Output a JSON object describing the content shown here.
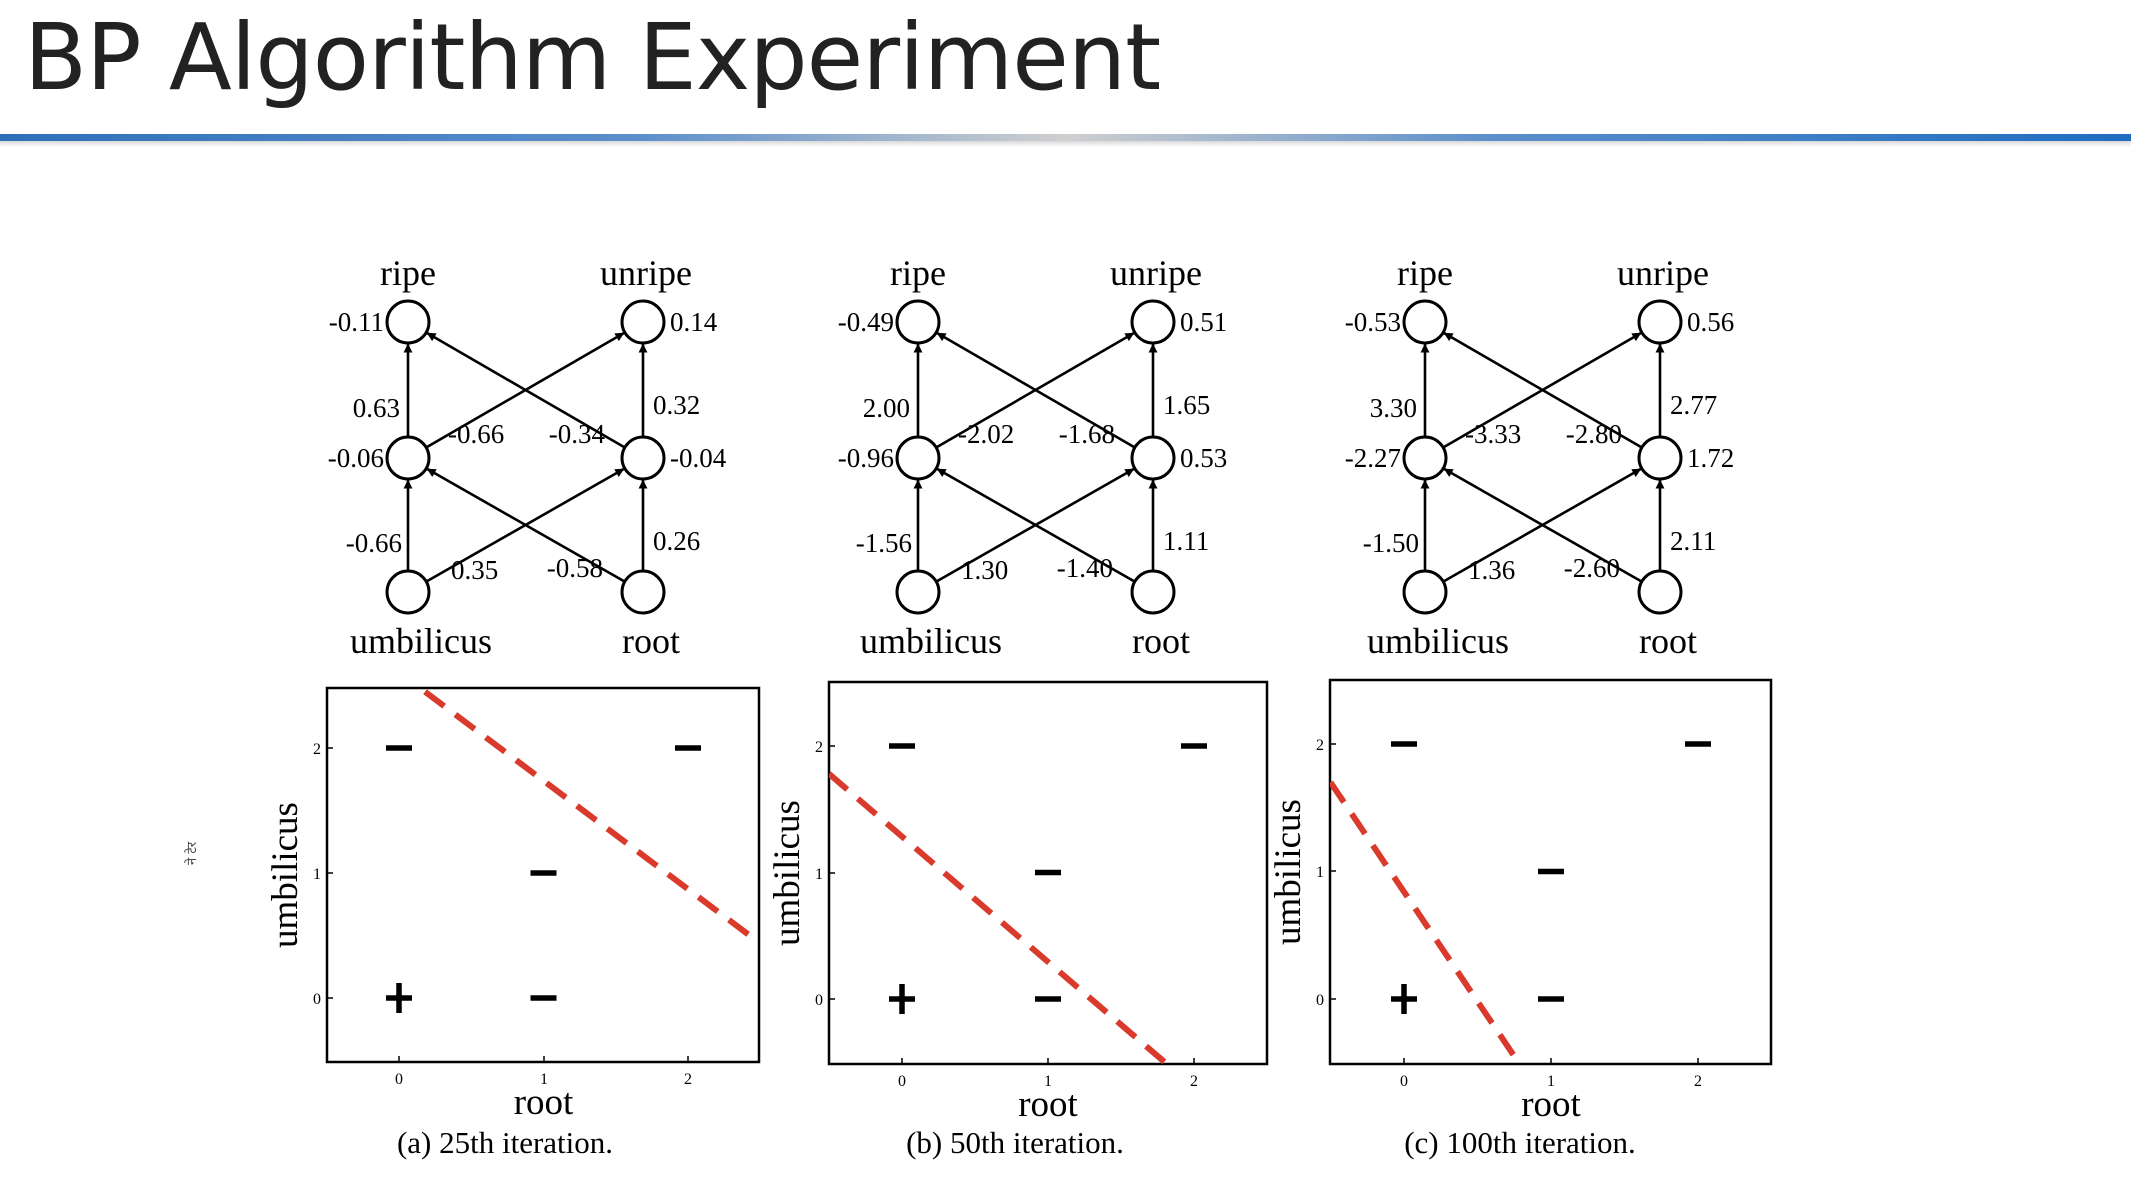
{
  "slide": {
    "title": "BP Algorithm Experiment",
    "side_note": "ने टेर"
  },
  "panels": [
    {
      "caption": "(a) 25th iteration.",
      "nodes": {
        "ripe": {
          "name": "ripe",
          "value": "-0.11"
        },
        "unripe": {
          "name": "unripe",
          "value": "0.14"
        },
        "hidden_left": {
          "value": "-0.06"
        },
        "hidden_right": {
          "value": "-0.04"
        },
        "umbilicus": {
          "name": "umbilicus"
        },
        "root": {
          "name": "root"
        }
      },
      "weights": {
        "hl_ripe": "0.63",
        "hl_unripe": "-0.66",
        "hr_ripe": "-0.34",
        "hr_unripe": "0.32",
        "umb_hl": "-0.66",
        "umb_hr": "0.35",
        "root_hl": "-0.58",
        "root_hr": "0.26"
      },
      "plot": {
        "xlabel": "root",
        "ylabel": "umbilicus",
        "xticks": [
          "0",
          "1",
          "2"
        ],
        "yticks": [
          "0",
          "1",
          "2"
        ],
        "boundary": [
          [
            0.18,
            2.45
          ],
          [
            2.45,
            0.48
          ]
        ],
        "points": [
          {
            "root": 0,
            "umbilicus": 0,
            "sign": "+"
          },
          {
            "root": 1,
            "umbilicus": 0,
            "sign": "-"
          },
          {
            "root": 1,
            "umbilicus": 1,
            "sign": "-"
          },
          {
            "root": 0,
            "umbilicus": 2,
            "sign": "-"
          },
          {
            "root": 2,
            "umbilicus": 2,
            "sign": "-"
          }
        ]
      }
    },
    {
      "caption": "(b) 50th iteration.",
      "nodes": {
        "ripe": {
          "name": "ripe",
          "value": "-0.49"
        },
        "unripe": {
          "name": "unripe",
          "value": "0.51"
        },
        "hidden_left": {
          "value": "-0.96"
        },
        "hidden_right": {
          "value": "0.53"
        },
        "umbilicus": {
          "name": "umbilicus"
        },
        "root": {
          "name": "root"
        }
      },
      "weights": {
        "hl_ripe": "2.00",
        "hl_unripe": "-2.02",
        "hr_ripe": "-1.68",
        "hr_unripe": "1.65",
        "umb_hl": "-1.56",
        "umb_hr": "1.30",
        "root_hl": "-1.40",
        "root_hr": "1.11"
      },
      "plot": {
        "xlabel": "root",
        "ylabel": "umbilicus",
        "xticks": [
          "0",
          "1",
          "2"
        ],
        "yticks": [
          "0",
          "1",
          "2"
        ],
        "boundary": [
          [
            -0.5,
            1.78
          ],
          [
            1.8,
            -0.5
          ]
        ],
        "points": [
          {
            "root": 0,
            "umbilicus": 0,
            "sign": "+"
          },
          {
            "root": 1,
            "umbilicus": 0,
            "sign": "-"
          },
          {
            "root": 1,
            "umbilicus": 1,
            "sign": "-"
          },
          {
            "root": 0,
            "umbilicus": 2,
            "sign": "-"
          },
          {
            "root": 2,
            "umbilicus": 2,
            "sign": "-"
          }
        ]
      }
    },
    {
      "caption": "(c) 100th iteration.",
      "nodes": {
        "ripe": {
          "name": "ripe",
          "value": "-0.53"
        },
        "unripe": {
          "name": "unripe",
          "value": "0.56"
        },
        "hidden_left": {
          "value": "-2.27"
        },
        "hidden_right": {
          "value": "1.72"
        },
        "umbilicus": {
          "name": "umbilicus"
        },
        "root": {
          "name": "root"
        }
      },
      "weights": {
        "hl_ripe": "3.30",
        "hl_unripe": "-3.33",
        "hr_ripe": "-2.80",
        "hr_unripe": "2.77",
        "umb_hl": "-1.50",
        "umb_hr": "1.36",
        "root_hl": "-2.60",
        "root_hr": "2.11"
      },
      "plot": {
        "xlabel": "root",
        "ylabel": "umbilicus",
        "xticks": [
          "0",
          "1",
          "2"
        ],
        "yticks": [
          "0",
          "1",
          "2"
        ],
        "boundary": [
          [
            -0.5,
            1.7
          ],
          [
            0.78,
            -0.5
          ]
        ],
        "points": [
          {
            "root": 0,
            "umbilicus": 0,
            "sign": "+"
          },
          {
            "root": 1,
            "umbilicus": 0,
            "sign": "-"
          },
          {
            "root": 1,
            "umbilicus": 1,
            "sign": "-"
          },
          {
            "root": 0,
            "umbilicus": 2,
            "sign": "-"
          },
          {
            "root": 2,
            "umbilicus": 2,
            "sign": "-"
          }
        ]
      }
    }
  ]
}
